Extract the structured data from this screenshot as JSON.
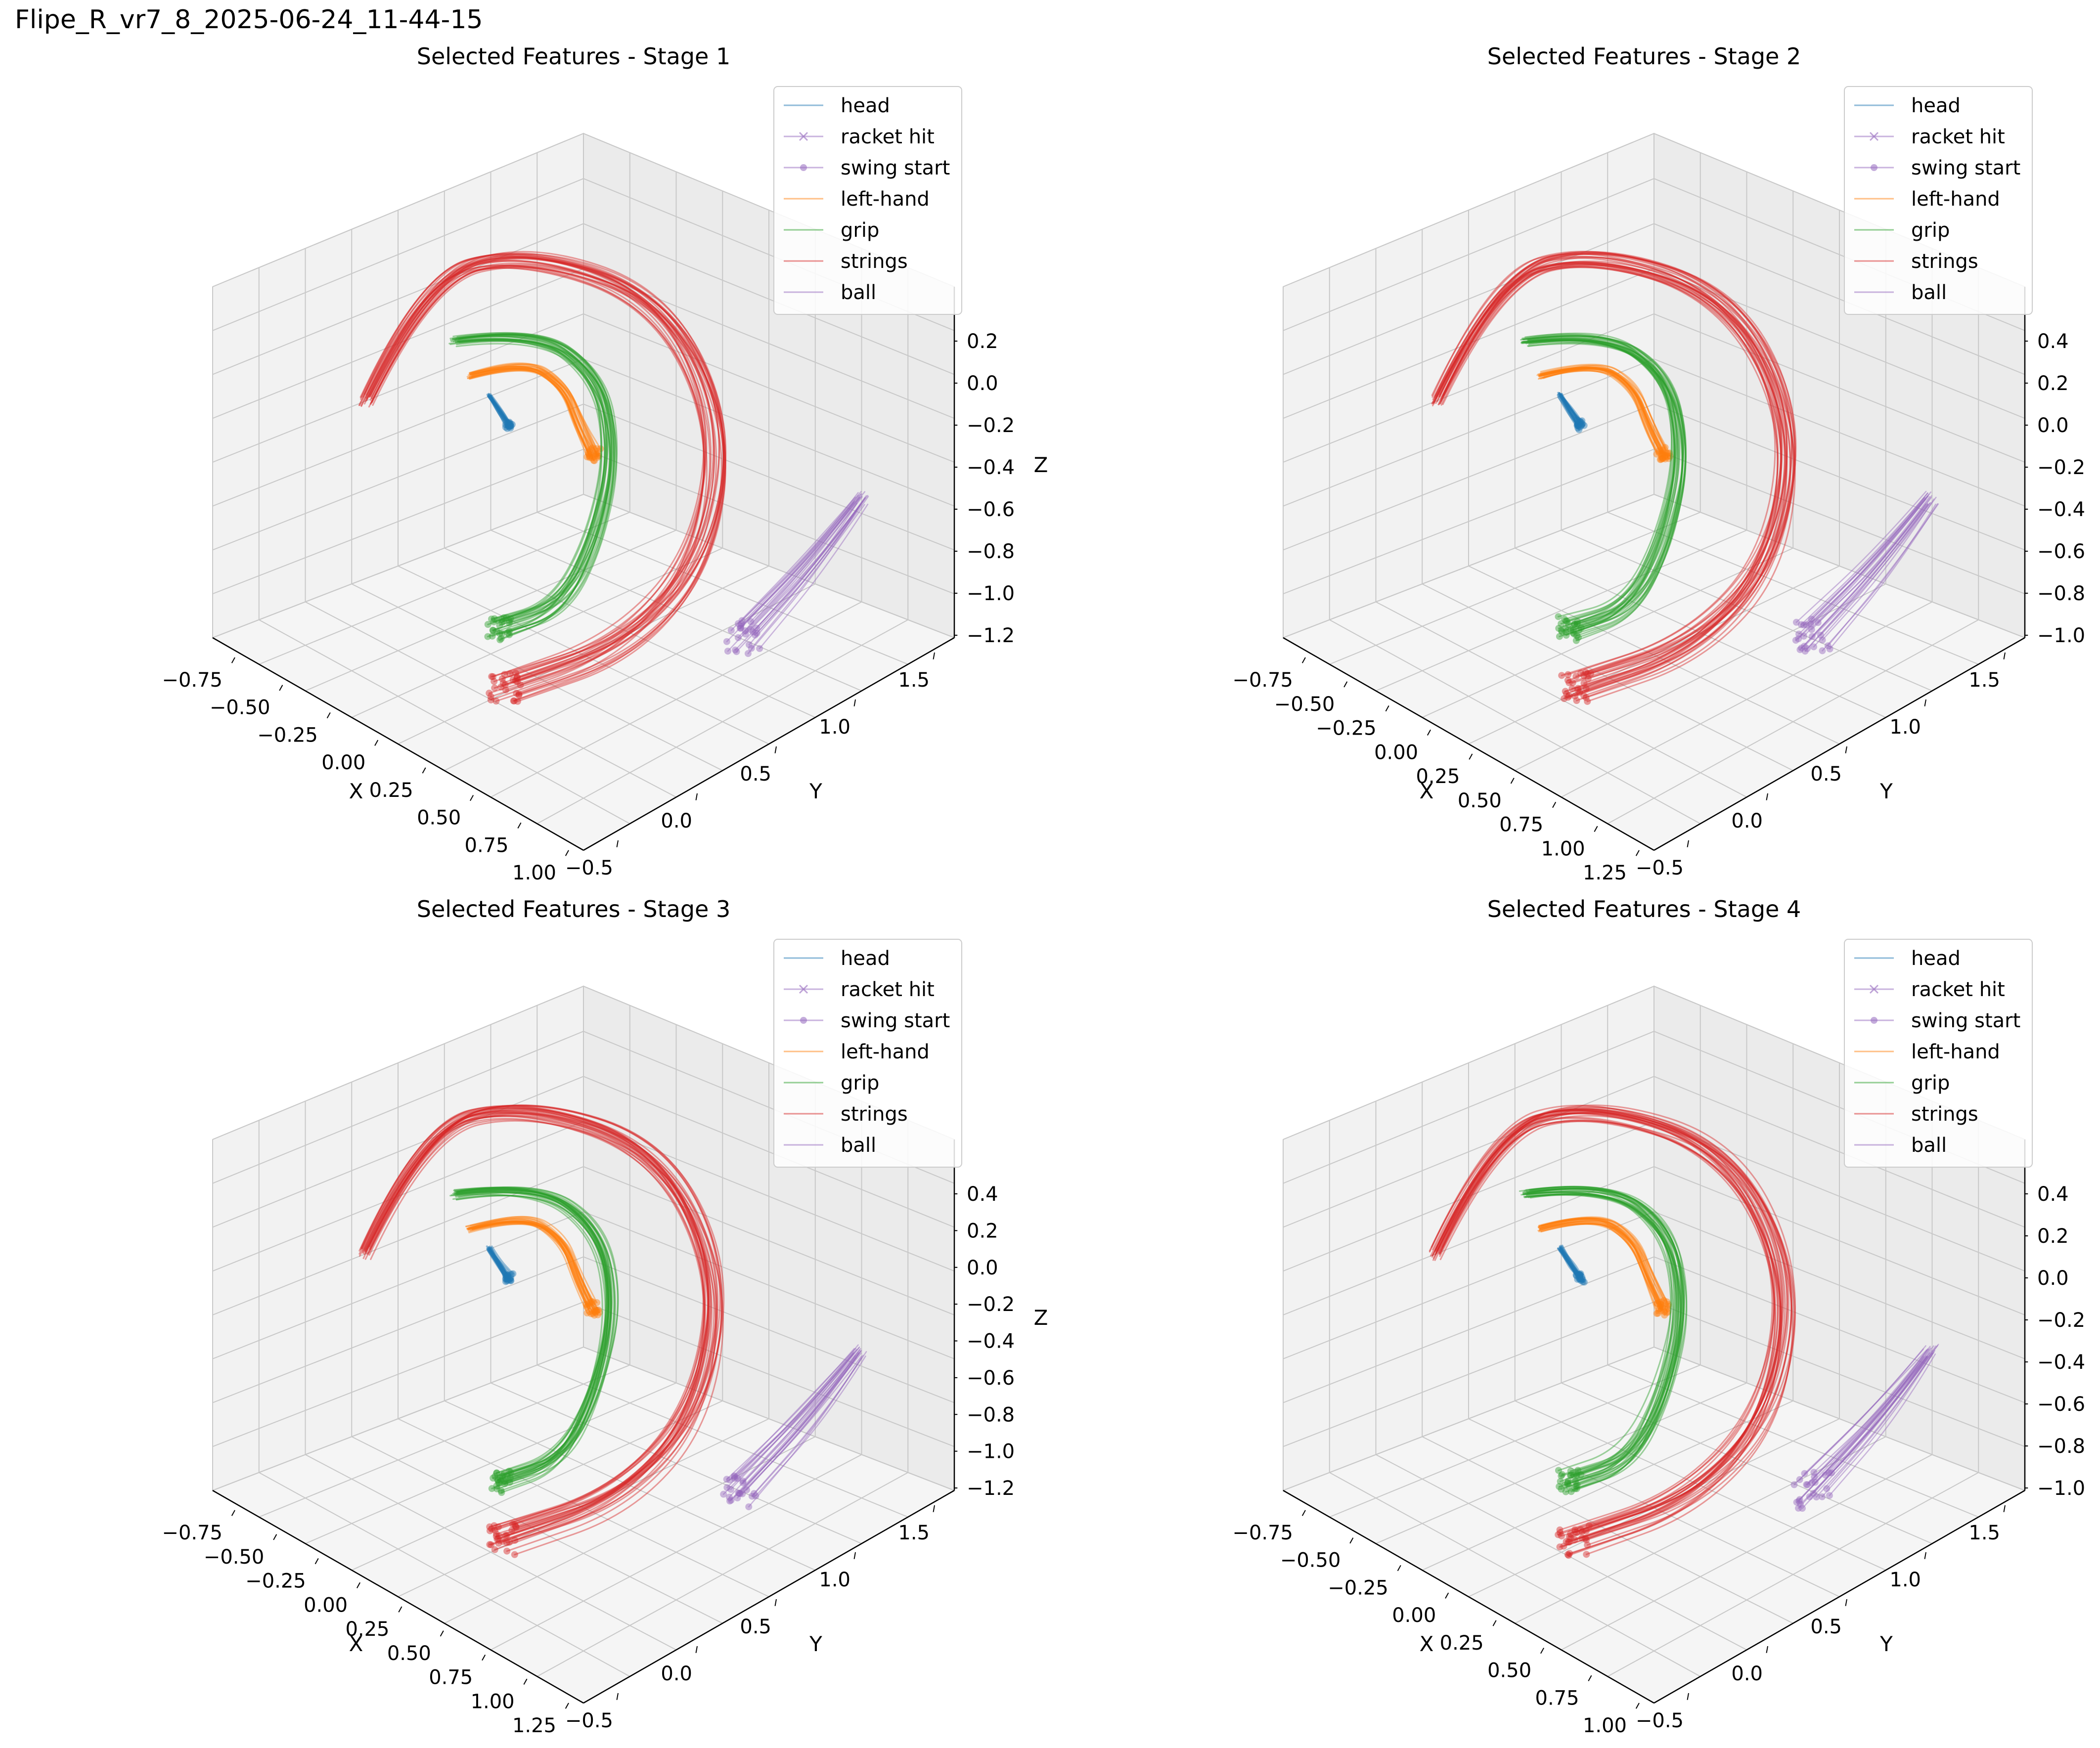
{
  "figure": {
    "suptitle": "Flipe_R_vr7_8_2025-06-24_11-44-15"
  },
  "colors": {
    "head": "#1f77b4",
    "racket_hit": "#9467bd",
    "swing_start": "#9467bd",
    "left_hand": "#ff7f0e",
    "grip": "#2ca02c",
    "strings": "#d62728",
    "ball": "#9467bd",
    "pane": "#f2f2f2",
    "grid": "#cccccc"
  },
  "legend_entries": [
    {
      "label": "head",
      "color_key": "head",
      "marker": "none"
    },
    {
      "label": "racket hit",
      "color_key": "racket_hit",
      "marker": "x"
    },
    {
      "label": "swing start",
      "color_key": "swing_start",
      "marker": "dot"
    },
    {
      "label": "left-hand",
      "color_key": "left_hand",
      "marker": "none"
    },
    {
      "label": "grip",
      "color_key": "grip",
      "marker": "none"
    },
    {
      "label": "strings",
      "color_key": "strings",
      "marker": "none"
    },
    {
      "label": "ball",
      "color_key": "ball",
      "marker": "none"
    }
  ],
  "chart_data": [
    {
      "type": "line3d",
      "title": "Selected Features - Stage 1",
      "xlabel": "X",
      "ylabel": "Y",
      "zlabel": "Z",
      "xticks": [
        "−0.75",
        "−0.50",
        "−0.25",
        "0.00",
        "0.25",
        "0.50",
        "0.75",
        "1.00"
      ],
      "yticks": [
        "−0.5",
        "0.0",
        "0.5",
        "1.0",
        "1.5"
      ],
      "zticks": [
        "0.2",
        "0.0",
        "−0.2",
        "−0.4",
        "−0.6",
        "−0.8",
        "−1.0",
        "−1.2"
      ],
      "xlim": [
        -0.75,
        1.0
      ],
      "ylim": [
        -0.5,
        1.5
      ],
      "zlim": [
        -1.2,
        0.2
      ],
      "grid": true,
      "legend_position": "top-right",
      "series": [
        {
          "name": "head",
          "trajectory": [
            [
              -0.2,
              1.0,
              -0.45
            ],
            [
              -0.16,
              1.05,
              -0.55
            ],
            [
              -0.12,
              1.1,
              -0.6
            ]
          ]
        },
        {
          "name": "left-hand",
          "trajectory": [
            [
              -0.3,
              0.9,
              -0.25
            ],
            [
              -0.1,
              1.0,
              -0.3
            ],
            [
              0.1,
              1.15,
              -0.45
            ],
            [
              0.2,
              1.2,
              -0.7
            ]
          ]
        },
        {
          "name": "grip",
          "trajectory": [
            [
              -0.45,
              0.8,
              -0.05
            ],
            [
              -0.1,
              1.1,
              0.0
            ],
            [
              0.25,
              1.3,
              -0.3
            ],
            [
              0.35,
              1.2,
              -0.7
            ],
            [
              0.35,
              0.9,
              -1.1
            ],
            [
              0.25,
              0.6,
              -1.25
            ]
          ]
        },
        {
          "name": "strings",
          "trajectory": [
            [
              -0.9,
              0.6,
              -0.4
            ],
            [
              -0.5,
              0.9,
              0.2
            ],
            [
              0.2,
              1.3,
              0.45
            ],
            [
              0.75,
              1.6,
              -0.1
            ],
            [
              0.95,
              1.5,
              -0.8
            ],
            [
              0.75,
              1.1,
              -1.3
            ],
            [
              0.45,
              0.6,
              -1.45
            ]
          ]
        },
        {
          "name": "ball",
          "trajectory": [
            [
              1.15,
              2.0,
              -0.45
            ],
            [
              1.0,
              1.7,
              -0.75
            ],
            [
              0.85,
              1.45,
              -1.05
            ]
          ]
        }
      ]
    },
    {
      "type": "line3d",
      "title": "Selected Features - Stage 2",
      "xlabel": "X",
      "ylabel": "Y",
      "zlabel": "",
      "xticks": [
        "−0.75",
        "−0.50",
        "−0.25",
        "0.00",
        "0.25",
        "0.50",
        "0.75",
        "1.00",
        "1.25"
      ],
      "yticks": [
        "−0.5",
        "0.0",
        "0.5",
        "1.0",
        "1.5"
      ],
      "zticks": [
        "0.4",
        "0.2",
        "0.0",
        "−0.2",
        "−0.4",
        "−0.6",
        "−0.8",
        "−1.0"
      ],
      "xlim": [
        -0.75,
        1.25
      ],
      "ylim": [
        -0.5,
        1.5
      ],
      "zlim": [
        -1.0,
        0.4
      ],
      "grid": true,
      "legend_position": "top-right",
      "series": [
        {
          "name": "head",
          "trajectory": [
            [
              -0.2,
              1.0,
              -0.4
            ],
            [
              -0.15,
              1.05,
              -0.5
            ],
            [
              -0.1,
              1.1,
              -0.55
            ]
          ]
        },
        {
          "name": "left-hand",
          "trajectory": [
            [
              -0.3,
              0.9,
              -0.2
            ],
            [
              -0.1,
              1.0,
              -0.25
            ],
            [
              0.1,
              1.15,
              -0.4
            ],
            [
              0.2,
              1.2,
              -0.65
            ]
          ]
        },
        {
          "name": "grip",
          "trajectory": [
            [
              -0.45,
              0.8,
              0.0
            ],
            [
              -0.1,
              1.1,
              0.05
            ],
            [
              0.25,
              1.3,
              -0.25
            ],
            [
              0.35,
              1.2,
              -0.65
            ],
            [
              0.35,
              0.9,
              -1.05
            ],
            [
              0.25,
              0.6,
              -1.2
            ]
          ]
        },
        {
          "name": "strings",
          "trajectory": [
            [
              -0.9,
              0.6,
              -0.35
            ],
            [
              -0.5,
              0.9,
              0.25
            ],
            [
              0.2,
              1.3,
              0.5
            ],
            [
              0.75,
              1.6,
              -0.05
            ],
            [
              0.95,
              1.5,
              -0.75
            ],
            [
              0.75,
              1.1,
              -1.25
            ],
            [
              0.45,
              0.6,
              -1.4
            ]
          ]
        },
        {
          "name": "ball",
          "trajectory": [
            [
              1.15,
              2.0,
              -0.4
            ],
            [
              1.0,
              1.7,
              -0.7
            ],
            [
              0.85,
              1.45,
              -1.0
            ]
          ]
        }
      ]
    },
    {
      "type": "line3d",
      "title": "Selected Features - Stage 3",
      "xlabel": "X",
      "ylabel": "Y",
      "zlabel": "Z",
      "xticks": [
        "−0.75",
        "−0.50",
        "−0.25",
        "0.00",
        "0.25",
        "0.50",
        "0.75",
        "1.00",
        "1.25"
      ],
      "yticks": [
        "−0.5",
        "0.0",
        "0.5",
        "1.0",
        "1.5"
      ],
      "zticks": [
        "0.4",
        "0.2",
        "0.0",
        "−0.2",
        "−0.4",
        "−0.6",
        "−0.8",
        "−1.0",
        "−1.2"
      ],
      "xlim": [
        -0.75,
        1.25
      ],
      "ylim": [
        -0.5,
        1.5
      ],
      "zlim": [
        -1.2,
        0.4
      ],
      "grid": true,
      "legend_position": "top-right",
      "series": [
        {
          "name": "head",
          "trajectory": [
            [
              -0.2,
              1.0,
              -0.4
            ],
            [
              -0.15,
              1.05,
              -0.5
            ],
            [
              -0.1,
              1.1,
              -0.55
            ]
          ]
        },
        {
          "name": "left-hand",
          "trajectory": [
            [
              -0.3,
              0.9,
              -0.2
            ],
            [
              -0.1,
              1.0,
              -0.25
            ],
            [
              0.1,
              1.15,
              -0.4
            ],
            [
              0.2,
              1.2,
              -0.65
            ]
          ]
        },
        {
          "name": "grip",
          "trajectory": [
            [
              -0.45,
              0.8,
              0.0
            ],
            [
              -0.1,
              1.1,
              0.05
            ],
            [
              0.25,
              1.3,
              -0.25
            ],
            [
              0.35,
              1.2,
              -0.65
            ],
            [
              0.35,
              0.9,
              -1.05
            ],
            [
              0.25,
              0.6,
              -1.2
            ]
          ]
        },
        {
          "name": "strings",
          "trajectory": [
            [
              -0.9,
              0.6,
              -0.35
            ],
            [
              -0.5,
              0.9,
              0.25
            ],
            [
              0.2,
              1.3,
              0.5
            ],
            [
              0.75,
              1.6,
              -0.05
            ],
            [
              0.95,
              1.5,
              -0.75
            ],
            [
              0.75,
              1.1,
              -1.25
            ],
            [
              0.45,
              0.6,
              -1.4
            ]
          ]
        },
        {
          "name": "ball",
          "trajectory": [
            [
              1.15,
              2.0,
              -0.4
            ],
            [
              1.0,
              1.7,
              -0.7
            ],
            [
              0.85,
              1.45,
              -1.0
            ]
          ]
        }
      ]
    },
    {
      "type": "line3d",
      "title": "Selected Features - Stage 4",
      "xlabel": "X",
      "ylabel": "Y",
      "zlabel": "",
      "xticks": [
        "−0.75",
        "−0.50",
        "−0.25",
        "0.00",
        "0.25",
        "0.50",
        "0.75",
        "1.00"
      ],
      "yticks": [
        "−0.5",
        "0.0",
        "0.5",
        "1.0",
        "1.5"
      ],
      "zticks": [
        "0.4",
        "0.2",
        "0.0",
        "−0.2",
        "−0.4",
        "−0.6",
        "−0.8",
        "−1.0"
      ],
      "xlim": [
        -0.75,
        1.0
      ],
      "ylim": [
        -0.5,
        1.5
      ],
      "zlim": [
        -1.0,
        0.4
      ],
      "grid": true,
      "legend_position": "top-right",
      "series": [
        {
          "name": "head",
          "trajectory": [
            [
              -0.2,
              1.0,
              -0.4
            ],
            [
              -0.15,
              1.05,
              -0.5
            ],
            [
              -0.1,
              1.1,
              -0.55
            ]
          ]
        },
        {
          "name": "left-hand",
          "trajectory": [
            [
              -0.3,
              0.9,
              -0.2
            ],
            [
              -0.1,
              1.0,
              -0.25
            ],
            [
              0.1,
              1.15,
              -0.4
            ],
            [
              0.2,
              1.2,
              -0.65
            ]
          ]
        },
        {
          "name": "grip",
          "trajectory": [
            [
              -0.45,
              0.8,
              0.0
            ],
            [
              -0.1,
              1.1,
              0.05
            ],
            [
              0.25,
              1.3,
              -0.25
            ],
            [
              0.35,
              1.2,
              -0.65
            ],
            [
              0.35,
              0.9,
              -1.05
            ],
            [
              0.25,
              0.6,
              -1.2
            ]
          ]
        },
        {
          "name": "strings",
          "trajectory": [
            [
              -0.9,
              0.6,
              -0.35
            ],
            [
              -0.5,
              0.9,
              0.25
            ],
            [
              0.2,
              1.3,
              0.5
            ],
            [
              0.75,
              1.6,
              -0.05
            ],
            [
              0.95,
              1.5,
              -0.75
            ],
            [
              0.75,
              1.1,
              -1.25
            ],
            [
              0.45,
              0.6,
              -1.4
            ]
          ]
        },
        {
          "name": "ball",
          "trajectory": [
            [
              1.15,
              2.0,
              -0.4
            ],
            [
              1.0,
              1.7,
              -0.7
            ],
            [
              0.85,
              1.45,
              -1.0
            ]
          ]
        }
      ]
    }
  ]
}
